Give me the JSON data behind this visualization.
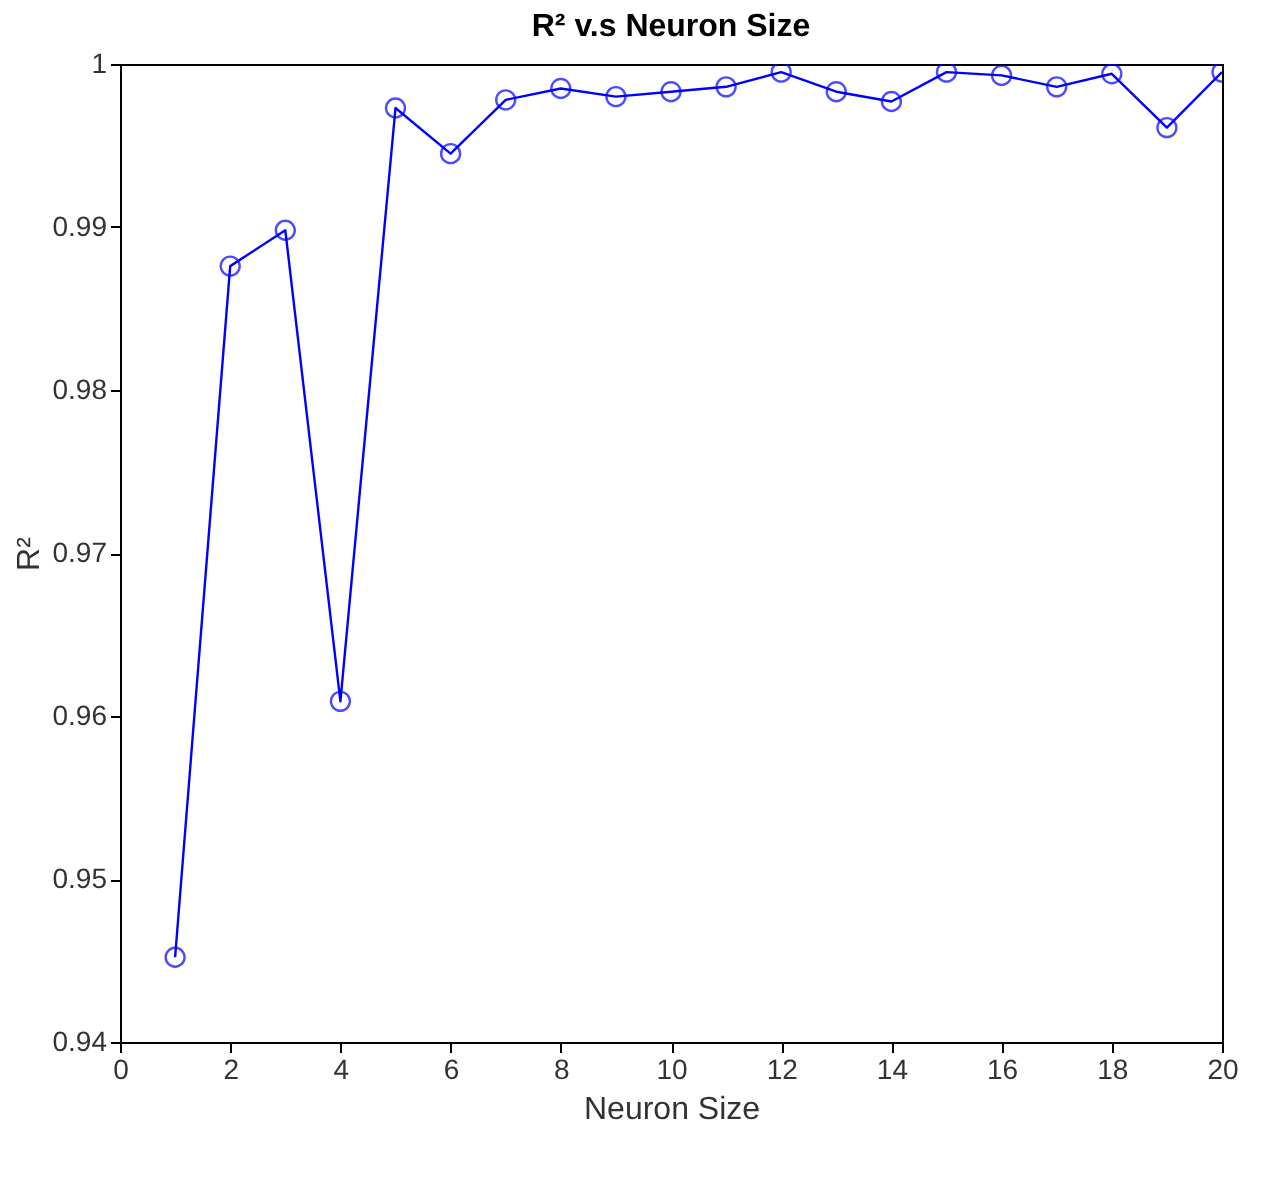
{
  "chart_data": {
    "type": "line",
    "title": "R² v.s Neuron Size",
    "xlabel": "Neuron Size",
    "ylabel": "R²",
    "x": [
      1,
      2,
      3,
      4,
      5,
      6,
      7,
      8,
      9,
      10,
      11,
      12,
      13,
      14,
      15,
      16,
      17,
      18,
      19,
      20
    ],
    "series": [
      {
        "color": "#0000ff",
        "values": [
          0.9452,
          0.9876,
          0.9898,
          0.9609,
          0.9973,
          0.9945,
          0.9978,
          0.9985,
          0.998,
          0.9983,
          0.9986,
          0.9995,
          0.9983,
          0.9977,
          0.9995,
          0.9993,
          0.9986,
          0.9994,
          0.9961,
          0.9995
        ]
      }
    ],
    "xlim": [
      0,
      20
    ],
    "xticks": [
      0,
      2,
      4,
      6,
      8,
      10,
      12,
      14,
      16,
      18,
      20
    ],
    "ylim": [
      0.94,
      1
    ],
    "yticks": [
      0.94,
      0.95,
      0.96,
      0.97,
      0.98,
      0.99,
      1
    ],
    "grid": false,
    "marker": "circle",
    "line_style": "solid"
  }
}
